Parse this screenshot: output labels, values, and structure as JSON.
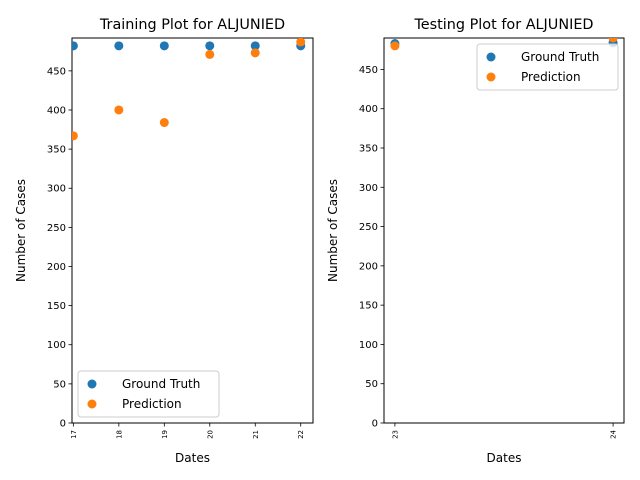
{
  "colors": {
    "ground_truth": "#1f77b4",
    "prediction": "#ff7f0e"
  },
  "chart_data": [
    {
      "type": "scatter",
      "title": "Training Plot for ALJUNIED",
      "xlabel": "Dates",
      "ylabel": "Number of Cases",
      "x": [
        17,
        18,
        19,
        20,
        21,
        22
      ],
      "xticks": [
        "17",
        "18",
        "19",
        "20",
        "21",
        "22"
      ],
      "xlim": [
        16.97,
        22.27
      ],
      "yticks": [
        0,
        50,
        100,
        150,
        200,
        250,
        300,
        350,
        400,
        450
      ],
      "ylim": [
        0,
        492
      ],
      "series": [
        {
          "name": "Ground Truth",
          "values": [
            482,
            482,
            482,
            482,
            482,
            482
          ]
        },
        {
          "name": "Prediction",
          "values": [
            367,
            400,
            384,
            471,
            473,
            487
          ]
        }
      ],
      "legend": "lower-left",
      "grid": false
    },
    {
      "type": "scatter",
      "title": "Testing Plot for ALJUNIED",
      "xlabel": "Dates",
      "ylabel": "Number of Cases",
      "x": [
        23,
        24
      ],
      "xticks": [
        "23",
        "24"
      ],
      "xlim": [
        22.95,
        24.05
      ],
      "yticks": [
        0,
        50,
        100,
        150,
        200,
        250,
        300,
        350,
        400,
        450
      ],
      "ylim": [
        0,
        490
      ],
      "series": [
        {
          "name": "Ground Truth",
          "values": [
            483,
            484
          ]
        },
        {
          "name": "Prediction",
          "values": [
            480,
            490
          ]
        }
      ],
      "legend": "upper-right",
      "grid": false
    }
  ]
}
